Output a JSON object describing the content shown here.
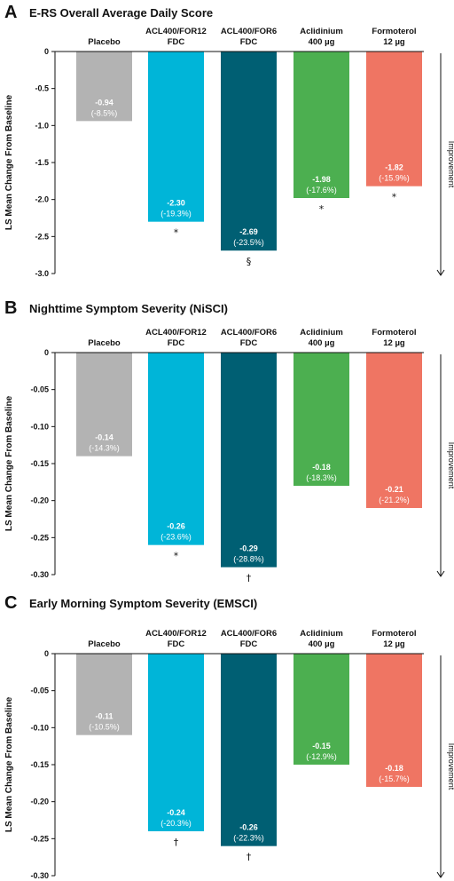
{
  "colors": [
    "#b3b3b3",
    "#00b5d8",
    "#005f73",
    "#4caf50",
    "#ef7563"
  ],
  "y_axis_label": "LS Mean Change From Baseline",
  "improvement_label": "Improvement",
  "chart_data": [
    {
      "type": "bar",
      "panel": "A",
      "title": "E-RS Overall Average Daily Score",
      "categories": [
        [
          "Placebo"
        ],
        [
          "ACL400/FOR12",
          "FDC"
        ],
        [
          "ACL400/FOR6",
          "FDC"
        ],
        [
          "Aclidinium",
          "400 µg"
        ],
        [
          "Formoterol",
          "12 µg"
        ]
      ],
      "values": [
        -0.94,
        -2.3,
        -2.69,
        -1.98,
        -1.82
      ],
      "value_labels": [
        "-0.94",
        "-2.30",
        "-2.69",
        "-1.98",
        "-1.82"
      ],
      "percent_labels": [
        "(-8.5%)",
        "(-19.3%)",
        "(-23.5%)",
        "(-17.6%)",
        "(-15.9%)"
      ],
      "significance": [
        "",
        "*",
        "§",
        "*",
        "*"
      ],
      "ylim": [
        -3.0,
        0
      ],
      "ticks": [
        "0",
        "-0.5",
        "-1.0",
        "-1.5",
        "-2.0",
        "-2.5",
        "-3.0"
      ],
      "tick_values": [
        0,
        -0.5,
        -1.0,
        -1.5,
        -2.0,
        -2.5,
        -3.0
      ]
    },
    {
      "type": "bar",
      "panel": "B",
      "title": "Nighttime Symptom Severity (NiSCI)",
      "categories": [
        [
          "Placebo"
        ],
        [
          "ACL400/FOR12",
          "FDC"
        ],
        [
          "ACL400/FOR6",
          "FDC"
        ],
        [
          "Aclidinium",
          "400 µg"
        ],
        [
          "Formoterol",
          "12 µg"
        ]
      ],
      "values": [
        -0.14,
        -0.26,
        -0.29,
        -0.18,
        -0.21
      ],
      "value_labels": [
        "-0.14",
        "-0.26",
        "-0.29",
        "-0.18",
        "-0.21"
      ],
      "percent_labels": [
        "(-14.3%)",
        "(-23.6%)",
        "(-28.8%)",
        "(-18.3%)",
        "(-21.2%)"
      ],
      "significance": [
        "",
        "*",
        "†",
        "",
        ""
      ],
      "ylim": [
        -0.3,
        0
      ],
      "ticks": [
        "0",
        "-0.05",
        "-0.10",
        "-0.15",
        "-0.20",
        "-0.25",
        "-0.30"
      ],
      "tick_values": [
        0,
        -0.05,
        -0.1,
        -0.15,
        -0.2,
        -0.25,
        -0.3
      ]
    },
    {
      "type": "bar",
      "panel": "C",
      "title": "Early Morning Symptom Severity (EMSCI)",
      "categories": [
        [
          "Placebo"
        ],
        [
          "ACL400/FOR12",
          "FDC"
        ],
        [
          "ACL400/FOR6",
          "FDC"
        ],
        [
          "Aclidinium",
          "400 µg"
        ],
        [
          "Formoterol",
          "12 µg"
        ]
      ],
      "values": [
        -0.11,
        -0.24,
        -0.26,
        -0.15,
        -0.18
      ],
      "value_labels": [
        "-0.11",
        "-0.24",
        "-0.26",
        "-0.15",
        "-0.18"
      ],
      "percent_labels": [
        "(-10.5%)",
        "(-20.3%)",
        "(-22.3%)",
        "(-12.9%)",
        "(-15.7%)"
      ],
      "significance": [
        "",
        "†",
        "†",
        "",
        ""
      ],
      "ylim": [
        -0.3,
        0
      ],
      "ticks": [
        "0",
        "-0.05",
        "-0.10",
        "-0.15",
        "-0.20",
        "-0.25",
        "-0.30"
      ],
      "tick_values": [
        0,
        -0.05,
        -0.1,
        -0.15,
        -0.2,
        -0.25,
        -0.3
      ]
    }
  ]
}
